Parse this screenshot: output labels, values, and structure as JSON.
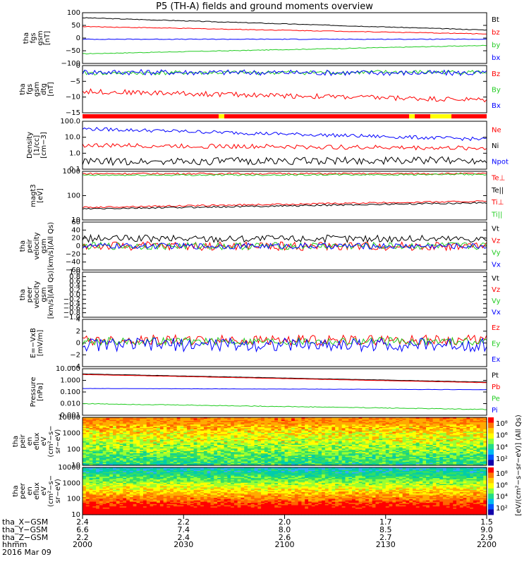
{
  "title": "P5 (TH-A) fields and ground moments overview",
  "colors": {
    "black": "#000000",
    "red": "#ff0000",
    "green": "#22cc22",
    "blue": "#0000ff",
    "yellow": "#ffff00"
  },
  "chart_data": {
    "type": "line",
    "x_range": [
      "2000",
      "2200"
    ],
    "time_ticks": [
      "2000",
      "2030",
      "2100",
      "2130",
      "2200"
    ],
    "panels": [
      {
        "ylabel": [
          "tha",
          "fgs",
          "gsm",
          "[nT]"
        ],
        "yticks": [
          "100",
          "50",
          "0",
          "−50",
          "−100"
        ],
        "ylim": [
          -110,
          110
        ],
        "legend": [
          {
            "name": "Bt",
            "color": "black"
          },
          {
            "name": "bz",
            "color": "red"
          },
          {
            "name": "by",
            "color": "green"
          },
          {
            "name": "bx",
            "color": "blue"
          }
        ],
        "series": [
          {
            "name": "Bt",
            "start": 88,
            "end": 35,
            "noise": 1.5
          },
          {
            "name": "bz",
            "start": 50,
            "end": 18,
            "noise": 1.5
          },
          {
            "name": "by",
            "start": -68,
            "end": -32,
            "noise": 1.5
          },
          {
            "name": "bx",
            "start": -5,
            "end": -5,
            "noise": 1.5
          }
        ]
      },
      {
        "ylabel": [
          "tha",
          "fgs",
          "gsm",
          "dtg",
          "[nT]"
        ],
        "yticks": [
          "0",
          "−5",
          "−10",
          "−15"
        ],
        "ylim": [
          -18,
          4
        ],
        "legend": [
          {
            "name": "Bz",
            "color": "red"
          },
          {
            "name": "By",
            "color": "green"
          },
          {
            "name": "Bx",
            "color": "blue"
          }
        ],
        "series": [
          {
            "name": "Bz",
            "start": -8,
            "end": -12,
            "noise": 1.2
          },
          {
            "name": "By",
            "start": 0.5,
            "end": 1,
            "noise": 1.0
          },
          {
            "name": "Bx",
            "start": 1,
            "end": 0.5,
            "noise": 1.3
          }
        ]
      },
      {
        "ylabel": [
          "Density",
          "[1/cc]",
          "[cm−3]"
        ],
        "yticks": [
          "100.0",
          "10.0",
          "1.0",
          "0.1"
        ],
        "ylim": [
          -1,
          2.2
        ],
        "log": true,
        "legend": [
          {
            "name": "Ne",
            "color": "red"
          },
          {
            "name": "Ni",
            "color": "black"
          },
          {
            "name": "Npot",
            "color": "blue"
          }
        ],
        "series": [
          {
            "name": "Ne",
            "start": 0.6,
            "end": 0.4,
            "noise": 0.15
          },
          {
            "name": "Ni",
            "start": -0.5,
            "end": -0.4,
            "noise": 0.25
          },
          {
            "name": "Npot",
            "start": 1.7,
            "end": 1.0,
            "noise": 0.12
          }
        ]
      },
      {
        "ylabel": [
          "magt3",
          "[eV]"
        ],
        "yticks": [
          "1000",
          "100",
          "10"
        ],
        "ylim": [
          0.5,
          3.6
        ],
        "log": true,
        "legend": [
          {
            "name": "Te⊥",
            "color": "red"
          },
          {
            "name": "Te||",
            "color": "black"
          },
          {
            "name": "Ti⊥",
            "color": "red"
          },
          {
            "name": "Ti||",
            "color": "green"
          }
        ],
        "series": [
          {
            "name": "Te⊥",
            "start": 1.3,
            "end": 1.7,
            "noise": 0.05
          },
          {
            "name": "Te||",
            "start": 1.2,
            "end": 1.6,
            "noise": 0.05
          },
          {
            "name": "Ti⊥",
            "start": 3.45,
            "end": 3.45,
            "noise": 0.05
          },
          {
            "name": "Ti||",
            "start": 3.35,
            "end": 3.4,
            "noise": 0.05
          }
        ]
      },
      {
        "ylabel": [
          "tha",
          "peir",
          "velocity",
          "gsm",
          "[km/s](All Qs)"
        ],
        "yticks": [
          "60",
          "40",
          "20",
          "0",
          "−20",
          "−40",
          "−60"
        ],
        "ylim": [
          -65,
          65
        ],
        "legend": [
          {
            "name": "Vt",
            "color": "black"
          },
          {
            "name": "Vz",
            "color": "red"
          },
          {
            "name": "Vy",
            "color": "green"
          },
          {
            "name": "Vx",
            "color": "blue"
          }
        ],
        "series": [
          {
            "name": "Vt",
            "start": 20,
            "end": 20,
            "noise": 10
          },
          {
            "name": "Vz",
            "start": 0,
            "end": 0,
            "noise": 12
          },
          {
            "name": "Vy",
            "start": 0,
            "end": 0,
            "noise": 10
          },
          {
            "name": "Vx",
            "start": 0,
            "end": 0,
            "noise": 8
          }
        ]
      },
      {
        "ylabel": [
          "tha",
          "peer",
          "velocity",
          "gsm",
          "[km/s](All Qs)"
        ],
        "yticks": [
          "1.0",
          "0.8",
          "0.6",
          "0.4",
          "0.2",
          "0.0",
          "−0.2",
          "−0.4",
          "−0.6",
          "−0.8",
          "−1.0"
        ],
        "ylim": [
          -1,
          1
        ],
        "legend": [
          {
            "name": "Vt",
            "color": "black"
          },
          {
            "name": "Vz",
            "color": "red"
          },
          {
            "name": "Vy",
            "color": "green"
          },
          {
            "name": "Vx",
            "color": "blue"
          }
        ],
        "series": []
      },
      {
        "ylabel": [
          "E=−VxB",
          "[mV/m]"
        ],
        "yticks": [
          "4",
          "2",
          "0",
          "−2",
          "−4"
        ],
        "ylim": [
          -4.2,
          4.2
        ],
        "legend": [
          {
            "name": "Ez",
            "color": "red"
          },
          {
            "name": "Ey",
            "color": "green"
          },
          {
            "name": "Ex",
            "color": "blue"
          }
        ],
        "series": [
          {
            "name": "Ez",
            "start": 0.5,
            "end": 0.5,
            "noise": 0.9
          },
          {
            "name": "Ey",
            "start": 0.3,
            "end": 0.3,
            "noise": 0.7
          },
          {
            "name": "Ex",
            "start": -0.3,
            "end": -0.3,
            "noise": 1.2
          }
        ]
      },
      {
        "ylabel": [
          "Pressure",
          "[nPa]"
        ],
        "yticks": [
          "10.000",
          "1.000",
          "0.100",
          "0.010",
          "0.001"
        ],
        "ylim": [
          -3,
          1
        ],
        "log": true,
        "legend": [
          {
            "name": "Pt",
            "color": "black"
          },
          {
            "name": "Pb",
            "color": "red"
          },
          {
            "name": "Pe",
            "color": "green"
          },
          {
            "name": "Pi",
            "color": "blue"
          }
        ],
        "series": [
          {
            "name": "Pt",
            "start": 0.55,
            "end": -0.15,
            "noise": 0.01
          },
          {
            "name": "Pb",
            "start": 0.5,
            "end": -0.2,
            "noise": 0.01
          },
          {
            "name": "Pe",
            "start": -2.0,
            "end": -2.5,
            "noise": 0.03
          },
          {
            "name": "Pi",
            "start": -0.7,
            "end": -0.8,
            "noise": 0.01
          }
        ]
      },
      {
        "ylabel": [
          "tha",
          "peir",
          "en",
          "eflux",
          "eV",
          "(cm²−s−",
          "sr−eV)"
        ],
        "yticks": [
          "10000",
          "1000",
          "100",
          "10"
        ],
        "spectrogram": true,
        "colorbar_label": "[eV/(cm²−s−sr−eV)] (All Qs)",
        "colorbar_ticks": [
          "10⁸",
          "10⁶",
          "10⁴",
          "10²"
        ]
      },
      {
        "ylabel": [
          "tha",
          "peer",
          "en",
          "eflux",
          "eV",
          "(cm²−s−",
          "sr−eV)"
        ],
        "yticks": [
          "10000",
          "1000",
          "100",
          "10"
        ],
        "spectrogram": true,
        "colorbar_ticks": [
          "10⁸",
          "10⁶",
          "10⁴",
          "10²"
        ]
      }
    ],
    "orbit": {
      "rows": [
        {
          "label": "tha_X−GSM",
          "values": [
            "2.4",
            "2.2",
            "2.0",
            "1.7",
            "1.5"
          ]
        },
        {
          "label": "tha_Y−GSM",
          "values": [
            "6.6",
            "7.4",
            "8.0",
            "8.5",
            "9.0"
          ]
        },
        {
          "label": "tha_Z−GSM",
          "values": [
            "2.2",
            "2.4",
            "2.6",
            "2.7",
            "2.9"
          ]
        },
        {
          "label": "hhmm",
          "values": [
            "2000",
            "2030",
            "2100",
            "2130",
            "2200"
          ]
        }
      ],
      "date": "2016 Mar 09"
    }
  }
}
